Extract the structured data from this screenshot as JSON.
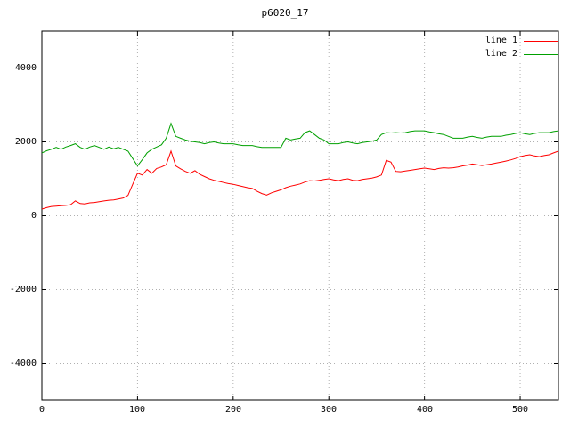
{
  "title": "p6020_17",
  "colors": {
    "line1": "#ff0000",
    "line2": "#00a000",
    "grid": "#b0b0b0",
    "border": "#000000",
    "background": "#ffffff"
  },
  "axes": {
    "x_tick_labels": [
      "0",
      "100",
      "200",
      "300",
      "400",
      "500"
    ],
    "x_tick_values": [
      0,
      100,
      200,
      300,
      400,
      500
    ],
    "y_tick_labels": [
      "4000",
      "2000",
      "0",
      "-2000",
      "-4000"
    ],
    "y_tick_values": [
      4000,
      2000,
      0,
      -2000,
      -4000
    ]
  },
  "legend": {
    "items": [
      {
        "label": "line 1",
        "color": "#ff0000"
      },
      {
        "label": "line 2",
        "color": "#00a000"
      }
    ]
  },
  "chart_data": {
    "type": "line",
    "title": "p6020_17",
    "xlabel": "",
    "ylabel": "",
    "xlim": [
      0,
      540
    ],
    "ylim": [
      -5000,
      5000
    ],
    "grid": true,
    "legend_position": "top-right",
    "x": [
      0,
      5,
      10,
      15,
      20,
      25,
      30,
      35,
      40,
      45,
      50,
      55,
      60,
      65,
      70,
      75,
      80,
      85,
      90,
      95,
      100,
      105,
      110,
      115,
      120,
      125,
      130,
      135,
      140,
      145,
      150,
      155,
      160,
      165,
      170,
      175,
      180,
      185,
      190,
      195,
      200,
      205,
      210,
      215,
      220,
      225,
      230,
      235,
      240,
      245,
      250,
      255,
      260,
      265,
      270,
      275,
      280,
      285,
      290,
      295,
      300,
      305,
      310,
      315,
      320,
      325,
      330,
      335,
      340,
      345,
      350,
      355,
      360,
      365,
      370,
      375,
      380,
      385,
      390,
      395,
      400,
      405,
      410,
      415,
      420,
      425,
      430,
      435,
      440,
      445,
      450,
      455,
      460,
      465,
      470,
      475,
      480,
      485,
      490,
      495,
      500,
      505,
      510,
      515,
      520,
      525,
      530,
      535,
      540
    ],
    "series": [
      {
        "name": "line 1",
        "color": "#ff0000",
        "values": [
          180,
          220,
          250,
          260,
          270,
          280,
          300,
          400,
          330,
          320,
          350,
          360,
          380,
          400,
          420,
          430,
          450,
          480,
          550,
          850,
          1150,
          1100,
          1250,
          1150,
          1280,
          1320,
          1380,
          1750,
          1350,
          1270,
          1200,
          1150,
          1220,
          1120,
          1060,
          1000,
          960,
          930,
          900,
          870,
          850,
          820,
          790,
          760,
          740,
          660,
          600,
          560,
          620,
          660,
          700,
          760,
          800,
          830,
          860,
          910,
          950,
          940,
          960,
          980,
          1000,
          970,
          950,
          980,
          1000,
          960,
          950,
          980,
          1000,
          1020,
          1050,
          1100,
          1500,
          1450,
          1200,
          1190,
          1210,
          1230,
          1250,
          1270,
          1290,
          1270,
          1250,
          1280,
          1300,
          1290,
          1300,
          1320,
          1350,
          1370,
          1400,
          1380,
          1360,
          1380,
          1400,
          1430,
          1450,
          1480,
          1510,
          1550,
          1600,
          1630,
          1650,
          1620,
          1600,
          1630,
          1650,
          1700,
          1750
        ]
      },
      {
        "name": "line 2",
        "color": "#00a000",
        "values": [
          1700,
          1760,
          1800,
          1850,
          1800,
          1860,
          1900,
          1950,
          1850,
          1800,
          1860,
          1900,
          1850,
          1800,
          1860,
          1810,
          1850,
          1800,
          1750,
          1550,
          1350,
          1520,
          1700,
          1800,
          1860,
          1920,
          2100,
          2500,
          2150,
          2100,
          2050,
          2020,
          2000,
          1980,
          1950,
          1980,
          2000,
          1970,
          1950,
          1950,
          1950,
          1920,
          1900,
          1900,
          1900,
          1870,
          1850,
          1850,
          1850,
          1850,
          1850,
          2100,
          2050,
          2080,
          2100,
          2250,
          2300,
          2200,
          2100,
          2050,
          1950,
          1950,
          1950,
          1980,
          2000,
          1970,
          1950,
          1980,
          2000,
          2020,
          2050,
          2200,
          2250,
          2240,
          2250,
          2240,
          2250,
          2280,
          2300,
          2300,
          2300,
          2270,
          2250,
          2220,
          2200,
          2150,
          2100,
          2100,
          2100,
          2130,
          2150,
          2120,
          2100,
          2130,
          2150,
          2150,
          2150,
          2180,
          2200,
          2230,
          2250,
          2220,
          2200,
          2230,
          2250,
          2250,
          2250,
          2280,
          2300
        ]
      }
    ]
  }
}
